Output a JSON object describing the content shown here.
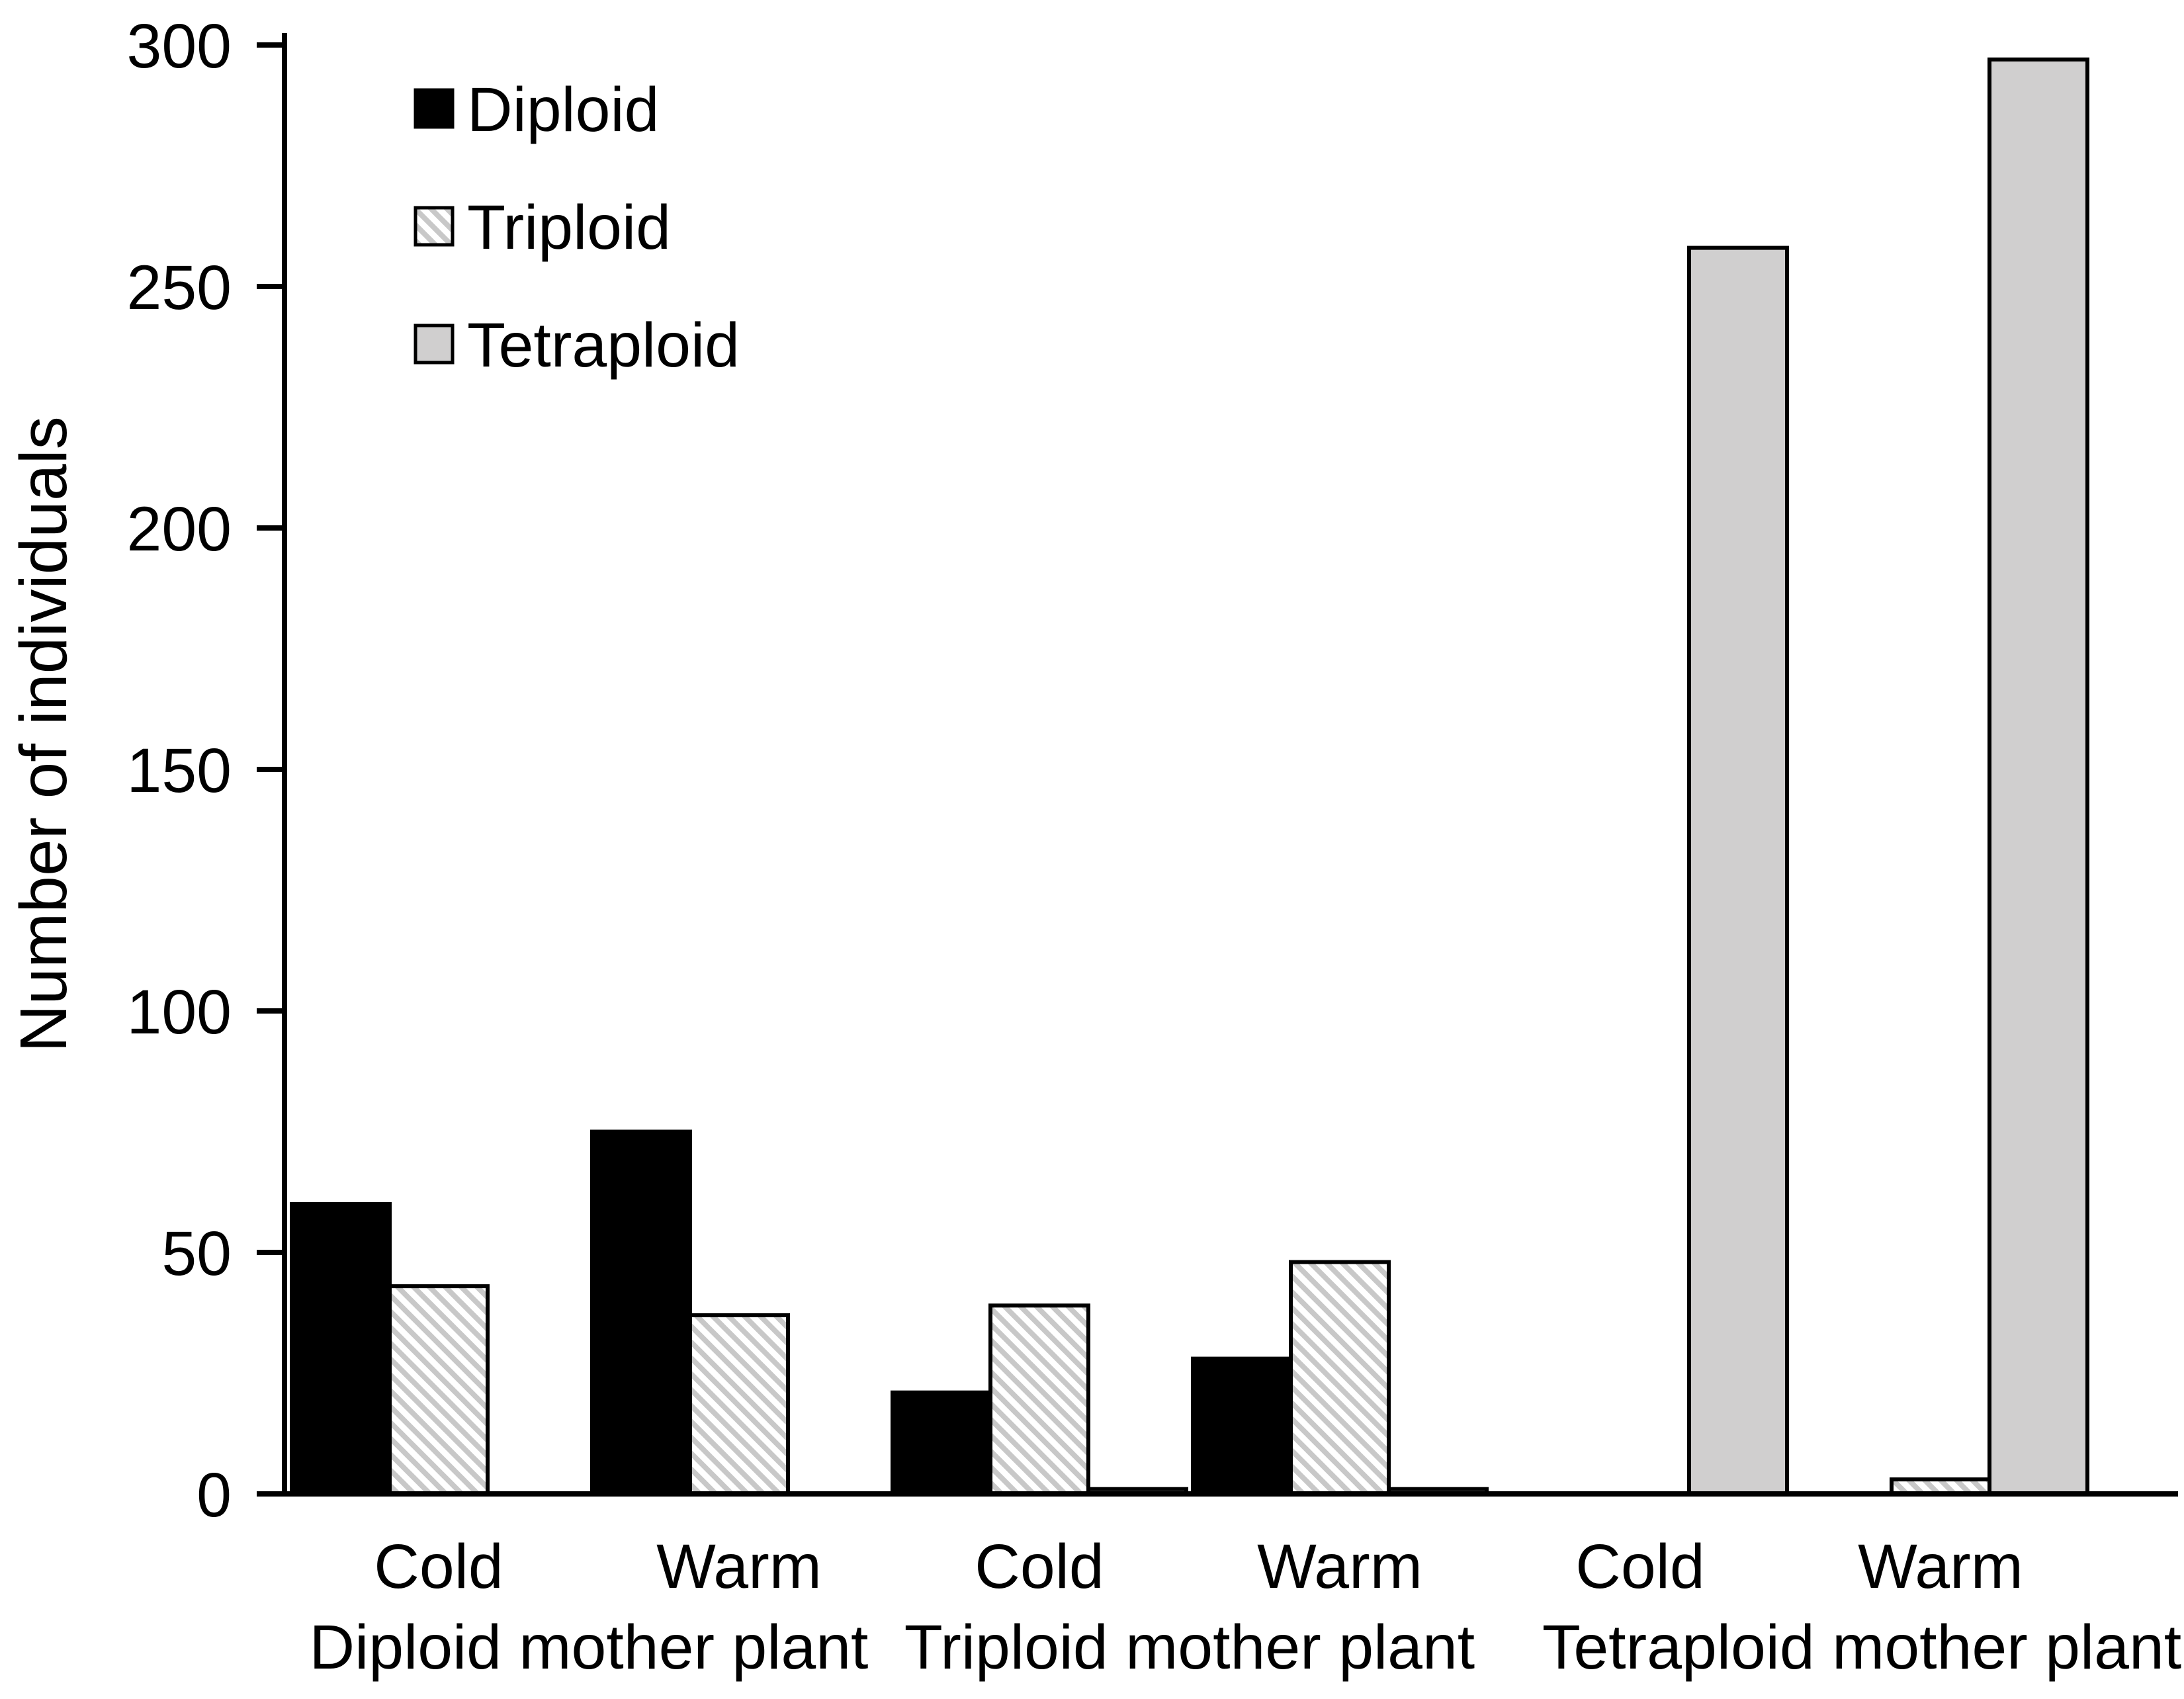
{
  "chart_data": {
    "type": "bar",
    "title": "",
    "ylabel": "Number of individuals",
    "xlabel": "",
    "ylim": [
      0,
      300
    ],
    "yticks": [
      0,
      50,
      100,
      150,
      200,
      250,
      300
    ],
    "grid": false,
    "legend_position": "top-left-inside",
    "legend": [
      {
        "name": "Diploid",
        "swatch": "solid-black"
      },
      {
        "name": "Triploid",
        "swatch": "diagonal-hatch"
      },
      {
        "name": "Tetraploid",
        "swatch": "solid-gray"
      }
    ],
    "colors": {
      "diploid_fill": "#000000",
      "triploid_hatch_line": "#c8c8c8",
      "triploid_bg": "#ffffff",
      "tetraploid_fill": "#d0cfcf",
      "bar_outline": "#000000",
      "axis": "#000000"
    },
    "series_names": [
      "Diploid",
      "Triploid",
      "Tetraploid"
    ],
    "groups": [
      {
        "label": "Diploid mother plant",
        "conditions": [
          {
            "label": "Cold",
            "values": {
              "Diploid": 60,
              "Triploid": 43,
              "Tetraploid": 0
            }
          },
          {
            "label": "Warm",
            "values": {
              "Diploid": 75,
              "Triploid": 37,
              "Tetraploid": 0
            }
          }
        ]
      },
      {
        "label": "Triploid mother plant",
        "conditions": [
          {
            "label": "Cold",
            "values": {
              "Diploid": 21,
              "Triploid": 39,
              "Tetraploid": 1
            }
          },
          {
            "label": "Warm",
            "values": {
              "Diploid": 28,
              "Triploid": 48,
              "Tetraploid": 1
            }
          }
        ]
      },
      {
        "label": "Tetraploid mother plant",
        "conditions": [
          {
            "label": "Cold",
            "values": {
              "Diploid": 0,
              "Triploid": 0,
              "Tetraploid": 258
            }
          },
          {
            "label": "Warm",
            "values": {
              "Diploid": 0,
              "Triploid": 3,
              "Tetraploid": 297
            }
          }
        ]
      }
    ]
  }
}
